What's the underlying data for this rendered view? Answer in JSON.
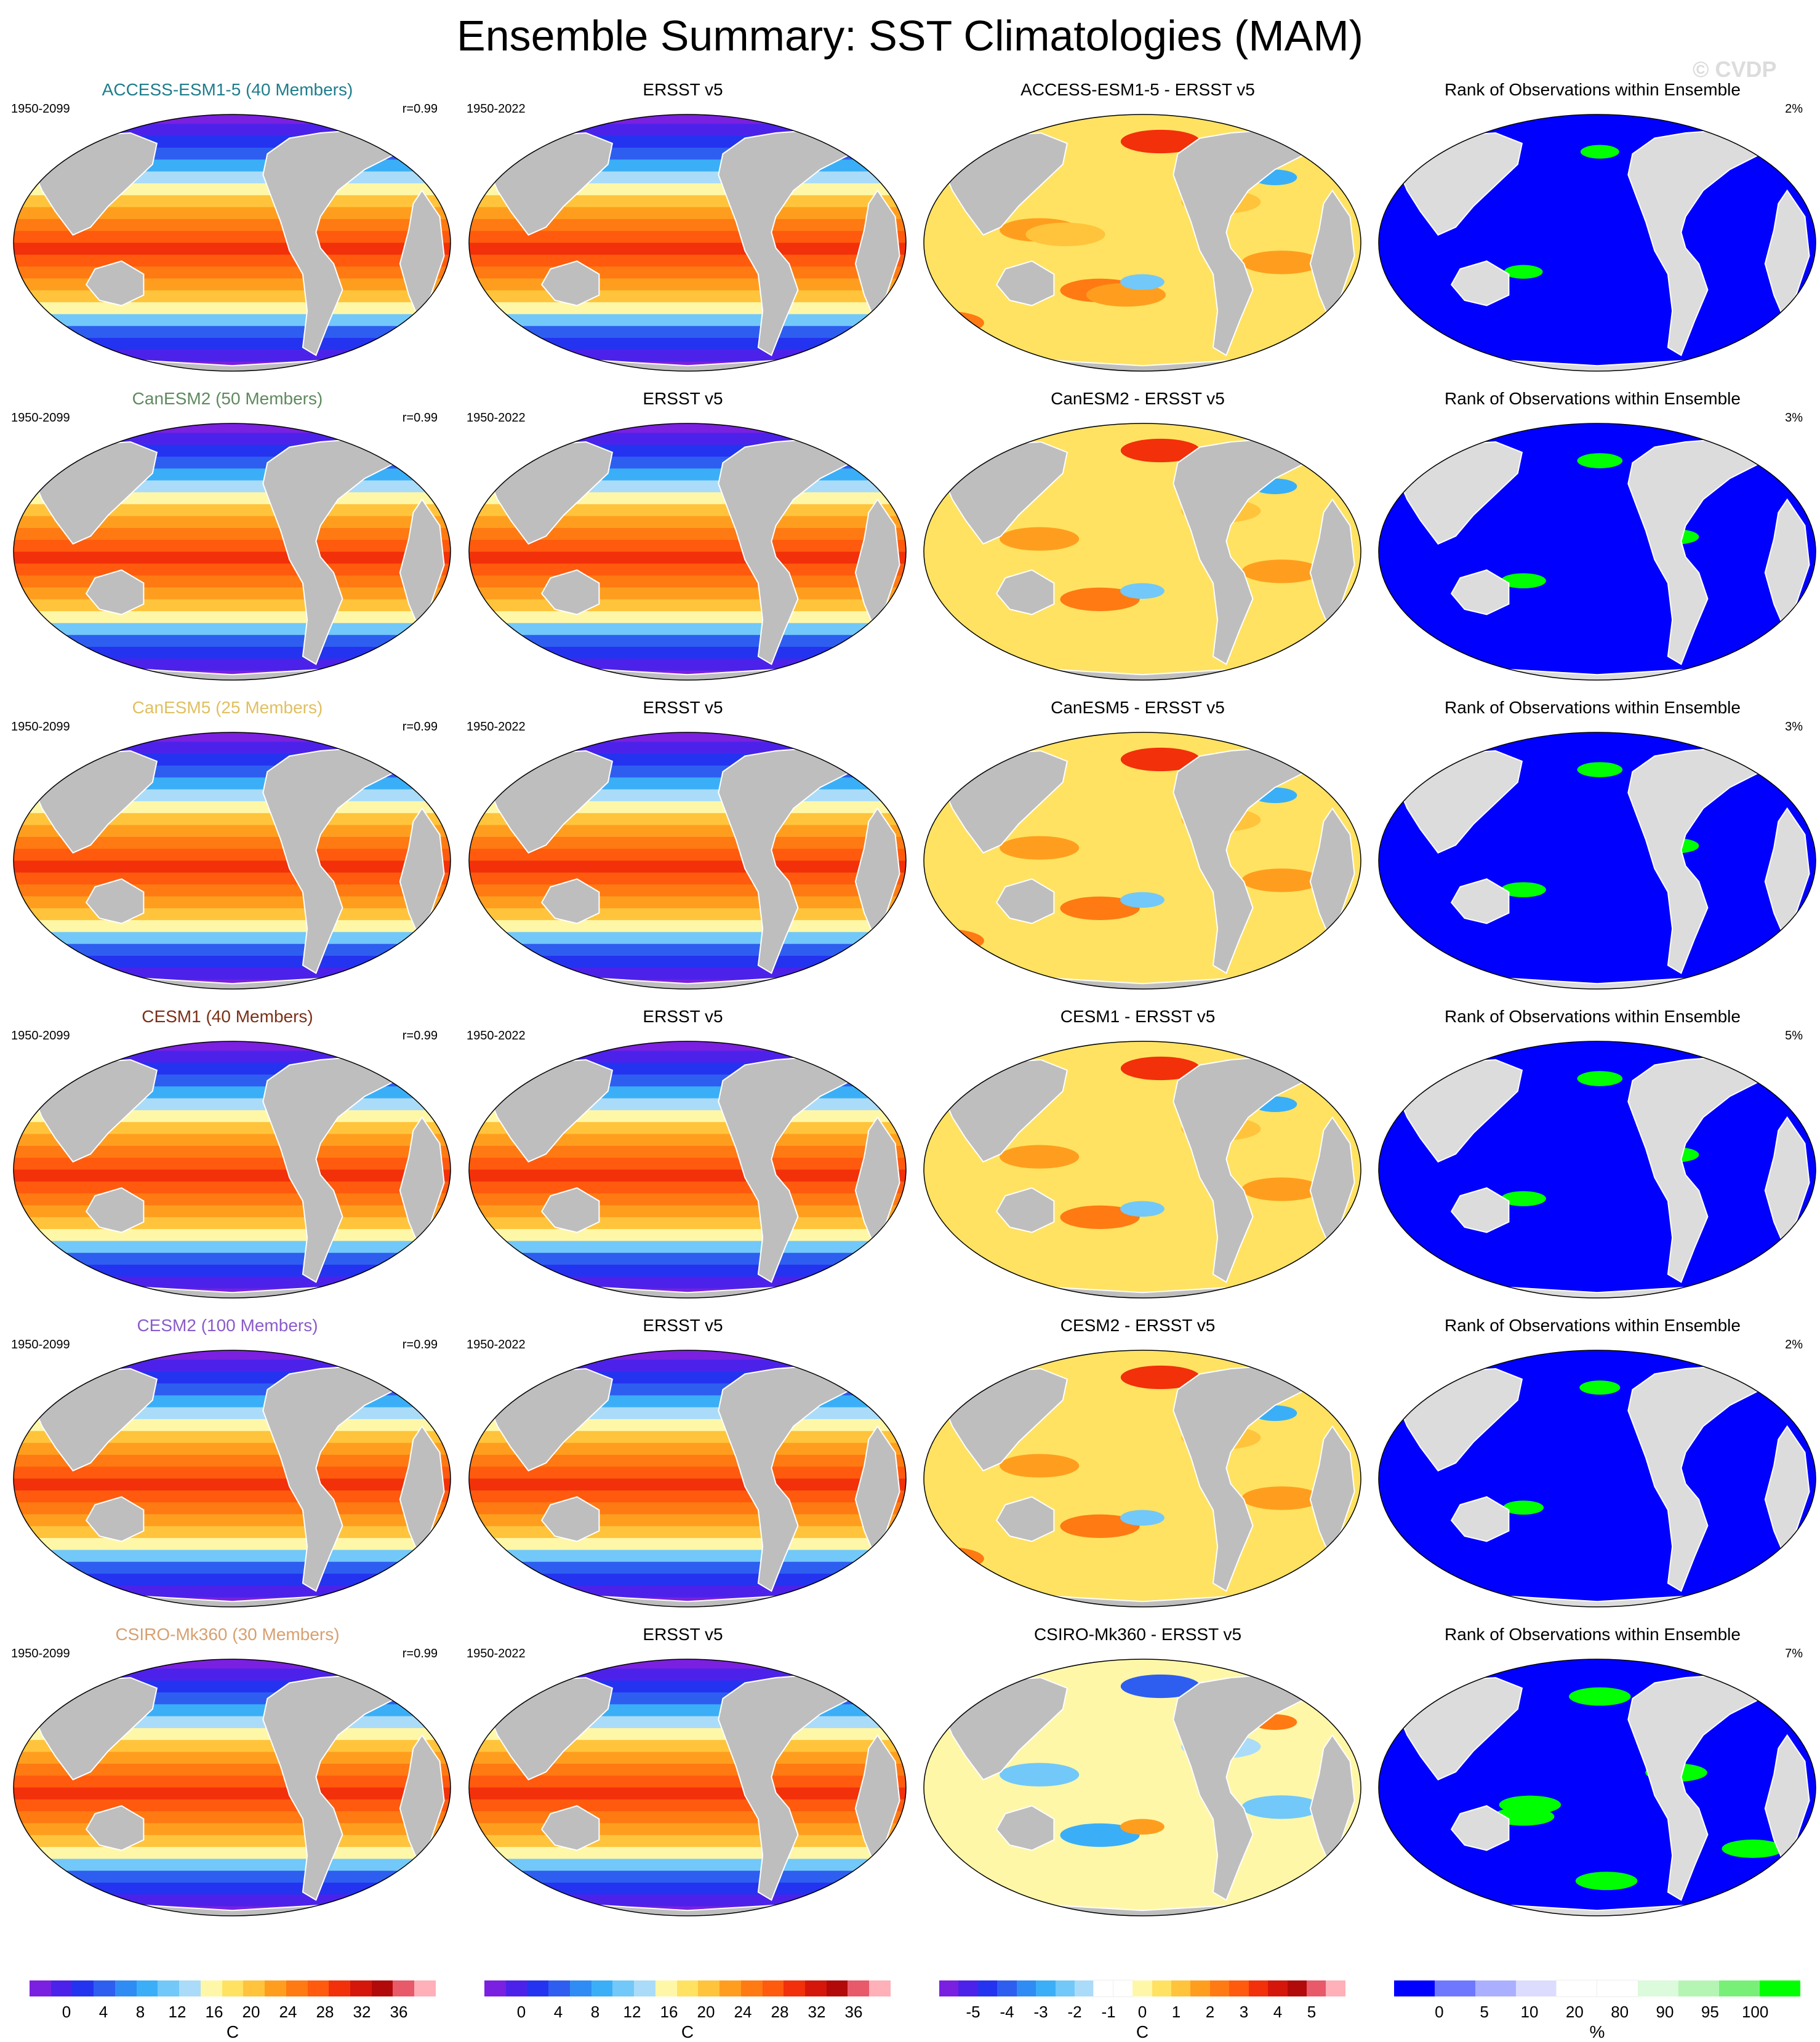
{
  "title": "Ensemble Summary: SST Climatologies (MAM)",
  "watermark": "© CVDP",
  "rows": [
    {
      "model": "ACCESS-ESM1-5 (40 Members)",
      "model_color": "#1e7d8c",
      "period": "1950-2099",
      "r": "r=0.99",
      "obs_title": "ERSST v5",
      "obs_period": "1950-2022",
      "diff_title": "ACCESS-ESM1-5 - ERSST v5",
      "rank_title": "Rank of Observations within Ensemble",
      "rank_pct": "2%",
      "diff_bias": 0.7,
      "rank_green": 0.05
    },
    {
      "model": "CanESM2 (50 Members)",
      "model_color": "#5f8a5f",
      "period": "1950-2099",
      "r": "r=0.99",
      "obs_title": "ERSST v5",
      "obs_period": "1950-2022",
      "diff_title": "CanESM2 - ERSST v5",
      "rank_title": "Rank of Observations within Ensemble",
      "rank_pct": "3%",
      "diff_bias": 0.3,
      "rank_green": 0.15
    },
    {
      "model": "CanESM5 (25 Members)",
      "model_color": "#e0c060",
      "period": "1950-2099",
      "r": "r=0.99",
      "obs_title": "ERSST v5",
      "obs_period": "1950-2022",
      "diff_title": "CanESM5 - ERSST v5",
      "rank_title": "Rank of Observations within Ensemble",
      "rank_pct": "3%",
      "diff_bias": 0.35,
      "rank_green": 0.15
    },
    {
      "model": "CESM1 (40 Members)",
      "model_color": "#7a3018",
      "period": "1950-2099",
      "r": "r=0.99",
      "obs_title": "ERSST v5",
      "obs_period": "1950-2022",
      "diff_title": "CESM1 - ERSST v5",
      "rank_title": "Rank of Observations within Ensemble",
      "rank_pct": "5%",
      "diff_bias": 0.2,
      "rank_green": 0.15
    },
    {
      "model": "CESM2 (100 Members)",
      "model_color": "#8a5cc8",
      "period": "1950-2099",
      "r": "r=0.99",
      "obs_title": "ERSST v5",
      "obs_period": "1950-2022",
      "diff_title": "CESM2 - ERSST v5",
      "rank_title": "Rank of Observations within Ensemble",
      "rank_pct": "2%",
      "diff_bias": 0.55,
      "rank_green": 0.08
    },
    {
      "model": "CSIRO-Mk360 (30 Members)",
      "model_color": "#d8a070",
      "period": "1950-2099",
      "r": "r=0.99",
      "obs_title": "ERSST v5",
      "obs_period": "1950-2022",
      "diff_title": "CSIRO-Mk360 - ERSST v5",
      "rank_title": "Rank of Observations within Ensemble",
      "rank_pct": "7%",
      "diff_bias": -0.25,
      "rank_green": 0.4
    }
  ],
  "colorbars": [
    {
      "unit": "C",
      "ticks": [
        "0",
        "4",
        "8",
        "12",
        "16",
        "20",
        "24",
        "28",
        "32",
        "36"
      ],
      "colors": [
        "#7a20e0",
        "#4c22ea",
        "#2433f0",
        "#2e5ef0",
        "#2f8cf4",
        "#3aaff7",
        "#72c8f9",
        "#aadcf9",
        "#fff7a8",
        "#ffe262",
        "#ffc43c",
        "#ff9e1e",
        "#ff7a12",
        "#ff5a0e",
        "#f2300a",
        "#d4170a",
        "#b20a0a",
        "#e8596a",
        "#ffb0b8"
      ]
    },
    {
      "unit": "C",
      "ticks": [
        "0",
        "4",
        "8",
        "12",
        "16",
        "20",
        "24",
        "28",
        "32",
        "36"
      ],
      "colors": [
        "#7a20e0",
        "#4c22ea",
        "#2433f0",
        "#2e5ef0",
        "#2f8cf4",
        "#3aaff7",
        "#72c8f9",
        "#aadcf9",
        "#fff7a8",
        "#ffe262",
        "#ffc43c",
        "#ff9e1e",
        "#ff7a12",
        "#ff5a0e",
        "#f2300a",
        "#d4170a",
        "#b20a0a",
        "#e8596a",
        "#ffb0b8"
      ]
    },
    {
      "unit": "C",
      "ticks": [
        "-5",
        "-4",
        "-3",
        "-2",
        "-1",
        "0",
        "1",
        "2",
        "3",
        "4",
        "5"
      ],
      "colors": [
        "#7a20e0",
        "#4c22ea",
        "#2433f0",
        "#2e5ef0",
        "#2f8cf4",
        "#3aaff7",
        "#72c8f9",
        "#aadcf9",
        "#ffffff",
        "#ffffff",
        "#fff7a8",
        "#ffe262",
        "#ffc43c",
        "#ff9e1e",
        "#ff7a12",
        "#ff5a0e",
        "#f2300a",
        "#d4170a",
        "#b20a0a",
        "#e8596a",
        "#ffb0b8"
      ]
    },
    {
      "unit": "%",
      "ticks": [
        "0",
        "5",
        "10",
        "20",
        "80",
        "90",
        "95",
        "100"
      ],
      "colors": [
        "#0000ff",
        "#6e78ff",
        "#aab0ff",
        "#dcdcff",
        "#ffffff",
        "#ffffff",
        "#dcfadc",
        "#b4f5b4",
        "#78f078",
        "#00ff00"
      ]
    }
  ]
}
